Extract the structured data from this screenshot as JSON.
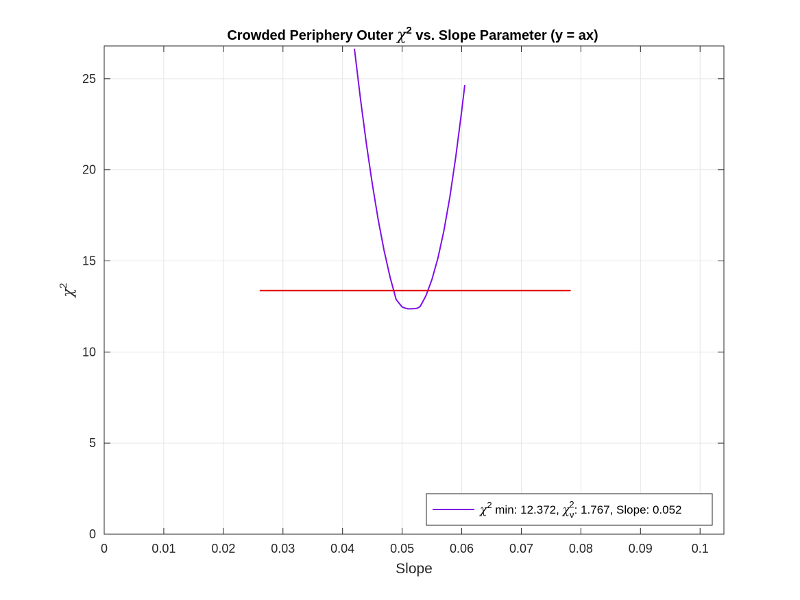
{
  "chart_data": {
    "type": "line",
    "title": {
      "prefix": "Crowded Periphery Outer ",
      "chi": "χ",
      "sup": "2",
      "suffix": " vs. Slope Parameter (y = ax)"
    },
    "xlabel": "Slope",
    "ylabel": {
      "chi": "χ",
      "sup": "2"
    },
    "xlim": [
      0,
      0.104
    ],
    "ylim": [
      0,
      26.8
    ],
    "x_ticks": [
      0,
      0.01,
      0.02,
      0.03,
      0.04,
      0.05,
      0.06,
      0.07,
      0.08,
      0.09,
      0.1
    ],
    "x_tick_labels": [
      "0",
      "0.01",
      "0.02",
      "0.03",
      "0.04",
      "0.05",
      "0.06",
      "0.07",
      "0.08",
      "0.09",
      "0.1"
    ],
    "y_ticks": [
      0,
      5,
      10,
      15,
      20,
      25
    ],
    "y_tick_labels": [
      "0",
      "5",
      "10",
      "15",
      "20",
      "25"
    ],
    "grid": true,
    "legend_position": "bottom-right",
    "series": [
      {
        "name": "χ² min: 12.372, χν²: 1.767, Slope: 0.052",
        "color": "#7E0FE6",
        "x": [
          0.042,
          0.043,
          0.044,
          0.045,
          0.046,
          0.047,
          0.048,
          0.049,
          0.05,
          0.0505,
          0.051,
          0.0515,
          0.052,
          0.0525,
          0.053,
          0.0535,
          0.054,
          0.055,
          0.056,
          0.057,
          0.058,
          0.059,
          0.06,
          0.0605
        ],
        "y": [
          26.62,
          23.9,
          21.42,
          19.2,
          17.24,
          15.53,
          14.08,
          12.88,
          12.47,
          12.41,
          12.37,
          12.37,
          12.38,
          12.4,
          12.49,
          12.78,
          13.09,
          13.98,
          15.15,
          16.65,
          18.5,
          20.7,
          23.23,
          24.62
        ]
      },
      {
        "color": "#E60000",
        "x": [
          0.0262,
          0.0782
        ],
        "y": [
          13.372,
          13.372
        ]
      }
    ]
  },
  "legend": {
    "chi": "χ",
    "sup": "2",
    "min_label": " min: 12.372, ",
    "nu": "ν",
    "nu_sup": "2",
    "reduced_label": ": 1.767, Slope: 0.052"
  }
}
